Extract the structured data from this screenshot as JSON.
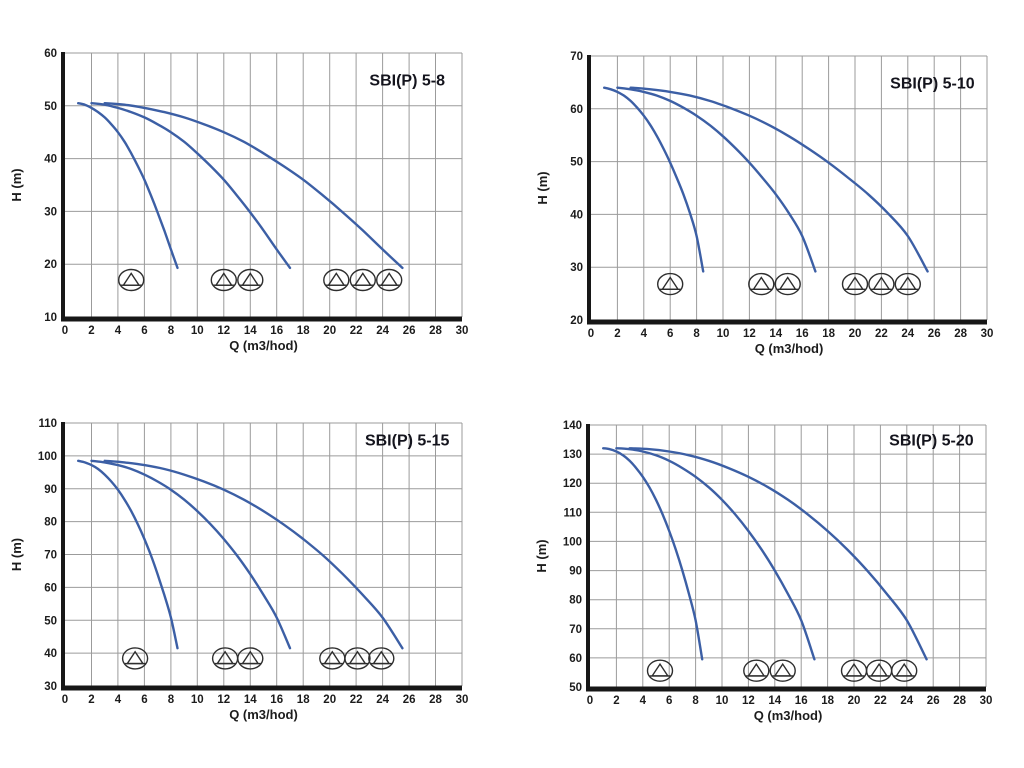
{
  "page": {
    "background": "#ffffff"
  },
  "chart_data": [
    {
      "type": "line",
      "title": "SBI(P) 5-8",
      "xlabel": "Q (m3/hod)",
      "ylabel": "H (m)",
      "xlim": [
        0,
        30
      ],
      "xstep": 2,
      "ylim": [
        10,
        60
      ],
      "ystep": 10,
      "grid": true,
      "legend": "none",
      "curve_color": "#3c5fa5",
      "series": [
        {
          "name": "1-pump",
          "points": [
            [
              1,
              50.5
            ],
            [
              1.5,
              50.2
            ],
            [
              2,
              49.6
            ],
            [
              2.5,
              48.8
            ],
            [
              3,
              47.8
            ],
            [
              3.5,
              46.5
            ],
            [
              4,
              45
            ],
            [
              4.5,
              43.2
            ],
            [
              5,
              41
            ],
            [
              5.5,
              38.6
            ],
            [
              6,
              36
            ],
            [
              6.5,
              33
            ],
            [
              7,
              29.8
            ],
            [
              7.5,
              26.4
            ],
            [
              8,
              22.8
            ],
            [
              8.5,
              19.3
            ]
          ]
        },
        {
          "name": "2-pumps",
          "points": [
            [
              2,
              50.5
            ],
            [
              3,
              50.2
            ],
            [
              4,
              49.6
            ],
            [
              5,
              48.8
            ],
            [
              6,
              47.8
            ],
            [
              7,
              46.5
            ],
            [
              8,
              45
            ],
            [
              9,
              43.2
            ],
            [
              10,
              41
            ],
            [
              11,
              38.6
            ],
            [
              12,
              36
            ],
            [
              13,
              33
            ],
            [
              14,
              29.8
            ],
            [
              15,
              26.4
            ],
            [
              16,
              22.8
            ],
            [
              17,
              19.3
            ]
          ]
        },
        {
          "name": "3-pumps",
          "points": [
            [
              3,
              50.5
            ],
            [
              4.5,
              50.2
            ],
            [
              6,
              49.6
            ],
            [
              7.5,
              48.8
            ],
            [
              9,
              47.8
            ],
            [
              10.5,
              46.5
            ],
            [
              12,
              45
            ],
            [
              13.5,
              43.2
            ],
            [
              15,
              41
            ],
            [
              16.5,
              38.6
            ],
            [
              18,
              36
            ],
            [
              19.5,
              33
            ],
            [
              21,
              29.8
            ],
            [
              22.5,
              26.4
            ],
            [
              24,
              22.8
            ],
            [
              25.5,
              19.3
            ]
          ]
        }
      ],
      "pump_icons": {
        "h": 17,
        "q_groups": [
          [
            5
          ],
          [
            12,
            14
          ],
          [
            20.5,
            22.5,
            24.5
          ]
        ]
      }
    },
    {
      "type": "line",
      "title": "SBI(P) 5-10",
      "xlabel": "Q (m3/hod)",
      "ylabel": "H (m)",
      "xlim": [
        0,
        30
      ],
      "xstep": 2,
      "ylim": [
        20,
        70
      ],
      "ystep": 10,
      "grid": true,
      "legend": "none",
      "curve_color": "#3c5fa5",
      "series": [
        {
          "name": "1-pump",
          "points": [
            [
              1,
              64
            ],
            [
              1.5,
              63.7
            ],
            [
              2,
              63.2
            ],
            [
              2.5,
              62.5
            ],
            [
              3,
              61.5
            ],
            [
              3.5,
              60.2
            ],
            [
              4,
              58.7
            ],
            [
              4.5,
              56.9
            ],
            [
              5,
              54.8
            ],
            [
              5.5,
              52.4
            ],
            [
              6,
              49.8
            ],
            [
              6.5,
              46.9
            ],
            [
              7,
              43.8
            ],
            [
              7.5,
              40.2
            ],
            [
              8,
              35.9
            ],
            [
              8.5,
              29.2
            ]
          ]
        },
        {
          "name": "2-pumps",
          "points": [
            [
              2,
              64
            ],
            [
              3,
              63.7
            ],
            [
              4,
              63.2
            ],
            [
              5,
              62.5
            ],
            [
              6,
              61.5
            ],
            [
              7,
              60.2
            ],
            [
              8,
              58.7
            ],
            [
              9,
              56.9
            ],
            [
              10,
              54.8
            ],
            [
              11,
              52.4
            ],
            [
              12,
              49.8
            ],
            [
              13,
              46.9
            ],
            [
              14,
              43.8
            ],
            [
              15,
              40.2
            ],
            [
              16,
              35.9
            ],
            [
              17,
              29.2
            ]
          ]
        },
        {
          "name": "3-pumps",
          "points": [
            [
              3,
              64
            ],
            [
              4.5,
              63.7
            ],
            [
              6,
              63.2
            ],
            [
              7.5,
              62.5
            ],
            [
              9,
              61.5
            ],
            [
              10.5,
              60.2
            ],
            [
              12,
              58.7
            ],
            [
              13.5,
              56.9
            ],
            [
              15,
              54.8
            ],
            [
              16.5,
              52.4
            ],
            [
              18,
              49.8
            ],
            [
              19.5,
              46.9
            ],
            [
              21,
              43.8
            ],
            [
              22.5,
              40.2
            ],
            [
              24,
              35.9
            ],
            [
              25.5,
              29.2
            ]
          ]
        }
      ],
      "pump_icons": {
        "h": 26.8,
        "q_groups": [
          [
            6
          ],
          [
            12.9,
            14.9
          ],
          [
            20,
            22,
            24
          ]
        ]
      }
    },
    {
      "type": "line",
      "title": "SBI(P) 5-15",
      "xlabel": "Q (m3/hod)",
      "ylabel": "H (m)",
      "xlim": [
        0,
        30
      ],
      "xstep": 2,
      "ylim": [
        30,
        110
      ],
      "ystep": 10,
      "grid": true,
      "legend": "none",
      "curve_color": "#3c5fa5",
      "series": [
        {
          "name": "1-pump",
          "points": [
            [
              1,
              98.5
            ],
            [
              1.5,
              98
            ],
            [
              2,
              97.2
            ],
            [
              2.5,
              96
            ],
            [
              3,
              94.3
            ],
            [
              3.5,
              92.2
            ],
            [
              4,
              89.7
            ],
            [
              4.5,
              86.7
            ],
            [
              5,
              83.2
            ],
            [
              5.5,
              79.2
            ],
            [
              6,
              74.7
            ],
            [
              6.5,
              69.7
            ],
            [
              7,
              64
            ],
            [
              7.5,
              57.7
            ],
            [
              8,
              50.8
            ],
            [
              8.5,
              41.5
            ]
          ]
        },
        {
          "name": "2-pumps",
          "points": [
            [
              2,
              98.5
            ],
            [
              3,
              98
            ],
            [
              4,
              97.2
            ],
            [
              5,
              96
            ],
            [
              6,
              94.3
            ],
            [
              7,
              92.2
            ],
            [
              8,
              89.7
            ],
            [
              9,
              86.7
            ],
            [
              10,
              83.2
            ],
            [
              11,
              79.2
            ],
            [
              12,
              74.7
            ],
            [
              13,
              69.7
            ],
            [
              14,
              64
            ],
            [
              15,
              57.7
            ],
            [
              16,
              50.8
            ],
            [
              17,
              41.5
            ]
          ]
        },
        {
          "name": "3-pumps",
          "points": [
            [
              3,
              98.5
            ],
            [
              4.5,
              98
            ],
            [
              6,
              97.2
            ],
            [
              7.5,
              96
            ],
            [
              9,
              94.3
            ],
            [
              10.5,
              92.2
            ],
            [
              12,
              89.7
            ],
            [
              13.5,
              86.7
            ],
            [
              15,
              83.2
            ],
            [
              16.5,
              79.2
            ],
            [
              18,
              74.7
            ],
            [
              19.5,
              69.7
            ],
            [
              21,
              64
            ],
            [
              22.5,
              57.7
            ],
            [
              24,
              50.8
            ],
            [
              25.5,
              41.5
            ]
          ]
        }
      ],
      "pump_icons": {
        "h": 38.4,
        "q_groups": [
          [
            5.3
          ],
          [
            12.1,
            14
          ],
          [
            20.2,
            22.1,
            23.9
          ]
        ]
      }
    },
    {
      "type": "line",
      "title": "SBI(P) 5-20",
      "xlabel": "Q (m3/hod)",
      "ylabel": "H (m)",
      "xlim": [
        0,
        30
      ],
      "xstep": 2,
      "ylim": [
        50,
        140
      ],
      "ystep": 10,
      "grid": true,
      "legend": "none",
      "curve_color": "#3c5fa5",
      "series": [
        {
          "name": "1-pump",
          "points": [
            [
              1,
              132
            ],
            [
              1.5,
              131.7
            ],
            [
              2,
              130.9
            ],
            [
              2.5,
              129.6
            ],
            [
              3,
              127.7
            ],
            [
              3.5,
              125.2
            ],
            [
              4,
              122.2
            ],
            [
              4.5,
              118.6
            ],
            [
              5,
              114.3
            ],
            [
              5.5,
              109.3
            ],
            [
              6,
              103.6
            ],
            [
              6.5,
              97.2
            ],
            [
              7,
              90
            ],
            [
              7.5,
              81.9
            ],
            [
              8,
              72.9
            ],
            [
              8.5,
              59.5
            ]
          ]
        },
        {
          "name": "2-pumps",
          "points": [
            [
              2,
              132
            ],
            [
              3,
              131.7
            ],
            [
              4,
              130.9
            ],
            [
              5,
              129.6
            ],
            [
              6,
              127.7
            ],
            [
              7,
              125.2
            ],
            [
              8,
              122.2
            ],
            [
              9,
              118.6
            ],
            [
              10,
              114.3
            ],
            [
              11,
              109.3
            ],
            [
              12,
              103.6
            ],
            [
              13,
              97.2
            ],
            [
              14,
              90
            ],
            [
              15,
              81.9
            ],
            [
              16,
              72.9
            ],
            [
              17,
              59.5
            ]
          ]
        },
        {
          "name": "3-pumps",
          "points": [
            [
              3,
              132
            ],
            [
              4.5,
              131.7
            ],
            [
              6,
              130.9
            ],
            [
              7.5,
              129.6
            ],
            [
              9,
              127.7
            ],
            [
              10.5,
              125.2
            ],
            [
              12,
              122.2
            ],
            [
              13.5,
              118.6
            ],
            [
              15,
              114.3
            ],
            [
              16.5,
              109.3
            ],
            [
              18,
              103.6
            ],
            [
              19.5,
              97.2
            ],
            [
              21,
              90
            ],
            [
              22.5,
              81.9
            ],
            [
              24,
              72.9
            ],
            [
              25.5,
              59.5
            ]
          ]
        }
      ],
      "pump_icons": {
        "h": 55.6,
        "q_groups": [
          [
            5.3
          ],
          [
            12.6,
            14.6
          ],
          [
            20,
            21.9,
            23.8
          ]
        ]
      }
    }
  ]
}
